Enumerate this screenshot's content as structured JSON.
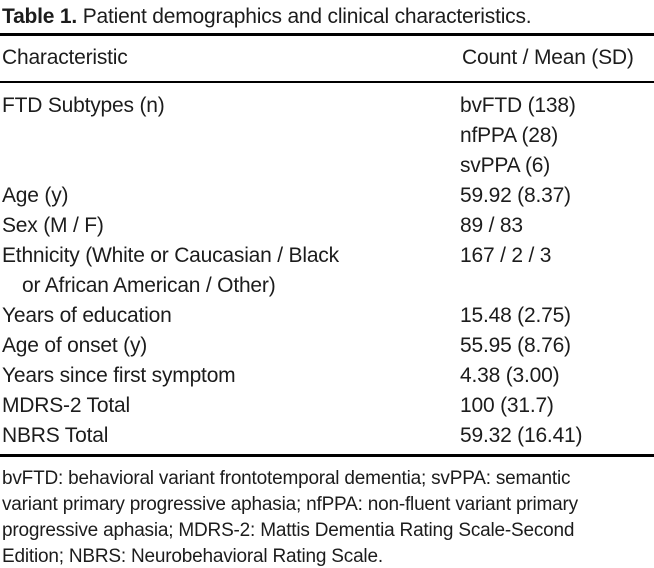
{
  "table": {
    "title_label": "Table 1.",
    "title_text": "Patient demographics and clinical characteristics.",
    "columns": {
      "characteristic": "Characteristic",
      "value": "Count / Mean (SD)"
    },
    "rows": [
      {
        "label": "FTD Subtypes (n)",
        "values": {
          "0": "bvFTD (138)",
          "1": "nfPPA (28)",
          "2": "svPPA (6)"
        }
      },
      {
        "label": "Age (y)",
        "value": "59.92 (8.37)"
      },
      {
        "label": "Sex (M / F)",
        "value": "89 / 83"
      },
      {
        "label": "Ethnicity (White or Caucasian / Black",
        "label2": "or African American / Other)",
        "value": "167 / 2 / 3"
      },
      {
        "label": "Years of education",
        "value": "15.48 (2.75)"
      },
      {
        "label": "Age of onset (y)",
        "value": "55.95 (8.76)"
      },
      {
        "label": "Years since first symptom",
        "value": "4.38 (3.00)"
      },
      {
        "label": "MDRS-2 Total",
        "value": "100 (31.7)"
      },
      {
        "label": "NBRS Total",
        "value": "59.32 (16.41)"
      }
    ],
    "footnote_lines": {
      "0": "bvFTD: behavioral variant frontotemporal dementia; svPPA: semantic",
      "1": "variant primary progressive aphasia; nfPPA: non-fluent variant primary",
      "2": "progressive aphasia; MDRS-2: Mattis Dementia Rating Scale-Second",
      "3": "Edition; NBRS: Neurobehavioral Rating Scale."
    },
    "colors": {
      "background": "#ffffff",
      "text": "#1c1c1c",
      "rule": "#000000"
    }
  }
}
